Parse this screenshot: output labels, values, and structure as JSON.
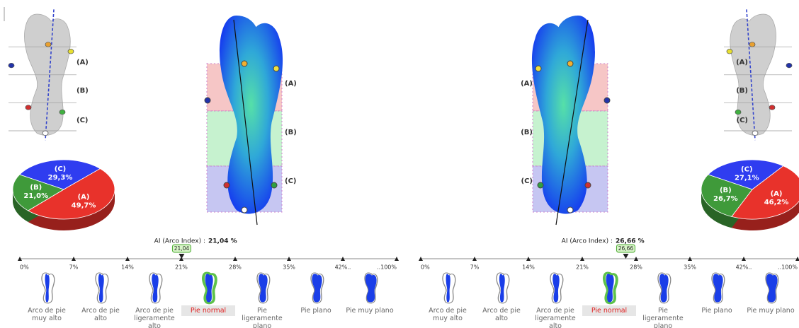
{
  "panels": [
    {
      "zone_labels": [
        "(A)",
        "(B)",
        "(C)"
      ],
      "pie": [
        {
          "label": "(A)",
          "value": 49.7,
          "value_label": "49,7%",
          "color": "#e8322b"
        },
        {
          "label": "(B)",
          "value": 21.0,
          "value_label": "21,0%",
          "color": "#3f9a3a"
        },
        {
          "label": "(C)",
          "value": 29.3,
          "value_label": "29,3%",
          "color": "#2f3df0"
        }
      ],
      "arch_index": {
        "label": "AI (Arco Index) :",
        "value": 21.04,
        "value_label": "21,04 %",
        "marker_label": "21,04"
      },
      "scale_ticks": [
        {
          "value": 0,
          "label": "0%"
        },
        {
          "value": 7,
          "label": "7%"
        },
        {
          "value": 14,
          "label": "14%"
        },
        {
          "value": 21,
          "label": "21%"
        },
        {
          "value": 28,
          "label": "28%"
        },
        {
          "value": 35,
          "label": "35%"
        },
        {
          "value": 42,
          "label": "42%.."
        },
        {
          "value": 100,
          "label": "..100%"
        }
      ],
      "categories": [
        "Arco de pie muy alto",
        "Arco de pie alto",
        "Arco de pie ligeramente alto",
        "Pie normal",
        "Pie ligeramente plano",
        "Pie plano",
        "Pie muy plano"
      ],
      "selected_category": 3
    },
    {
      "zone_labels": [
        "(A)",
        "(B)",
        "(C)"
      ],
      "pie": [
        {
          "label": "(A)",
          "value": 46.2,
          "value_label": "46,2%",
          "color": "#e8322b"
        },
        {
          "label": "(B)",
          "value": 26.7,
          "value_label": "26,7%",
          "color": "#3f9a3a"
        },
        {
          "label": "(C)",
          "value": 27.1,
          "value_label": "27,1%",
          "color": "#2f3df0"
        }
      ],
      "arch_index": {
        "label": "AI (Arco Index) :",
        "value": 26.66,
        "value_label": "26,66 %",
        "marker_label": "26,66"
      },
      "scale_ticks": [
        {
          "value": 0,
          "label": "0%"
        },
        {
          "value": 7,
          "label": "7%"
        },
        {
          "value": 14,
          "label": "14%"
        },
        {
          "value": 21,
          "label": "21%"
        },
        {
          "value": 28,
          "label": "28%"
        },
        {
          "value": 35,
          "label": "35%"
        },
        {
          "value": 42,
          "label": "42%.."
        },
        {
          "value": 100,
          "label": "..100%"
        }
      ],
      "categories": [
        "Arco de pie muy alto",
        "Arco de pie alto",
        "Arco de pie ligeramente alto",
        "Pie normal",
        "Pie ligeramente plano",
        "Pie plano",
        "Pie muy plano"
      ],
      "selected_category": 3
    }
  ]
}
